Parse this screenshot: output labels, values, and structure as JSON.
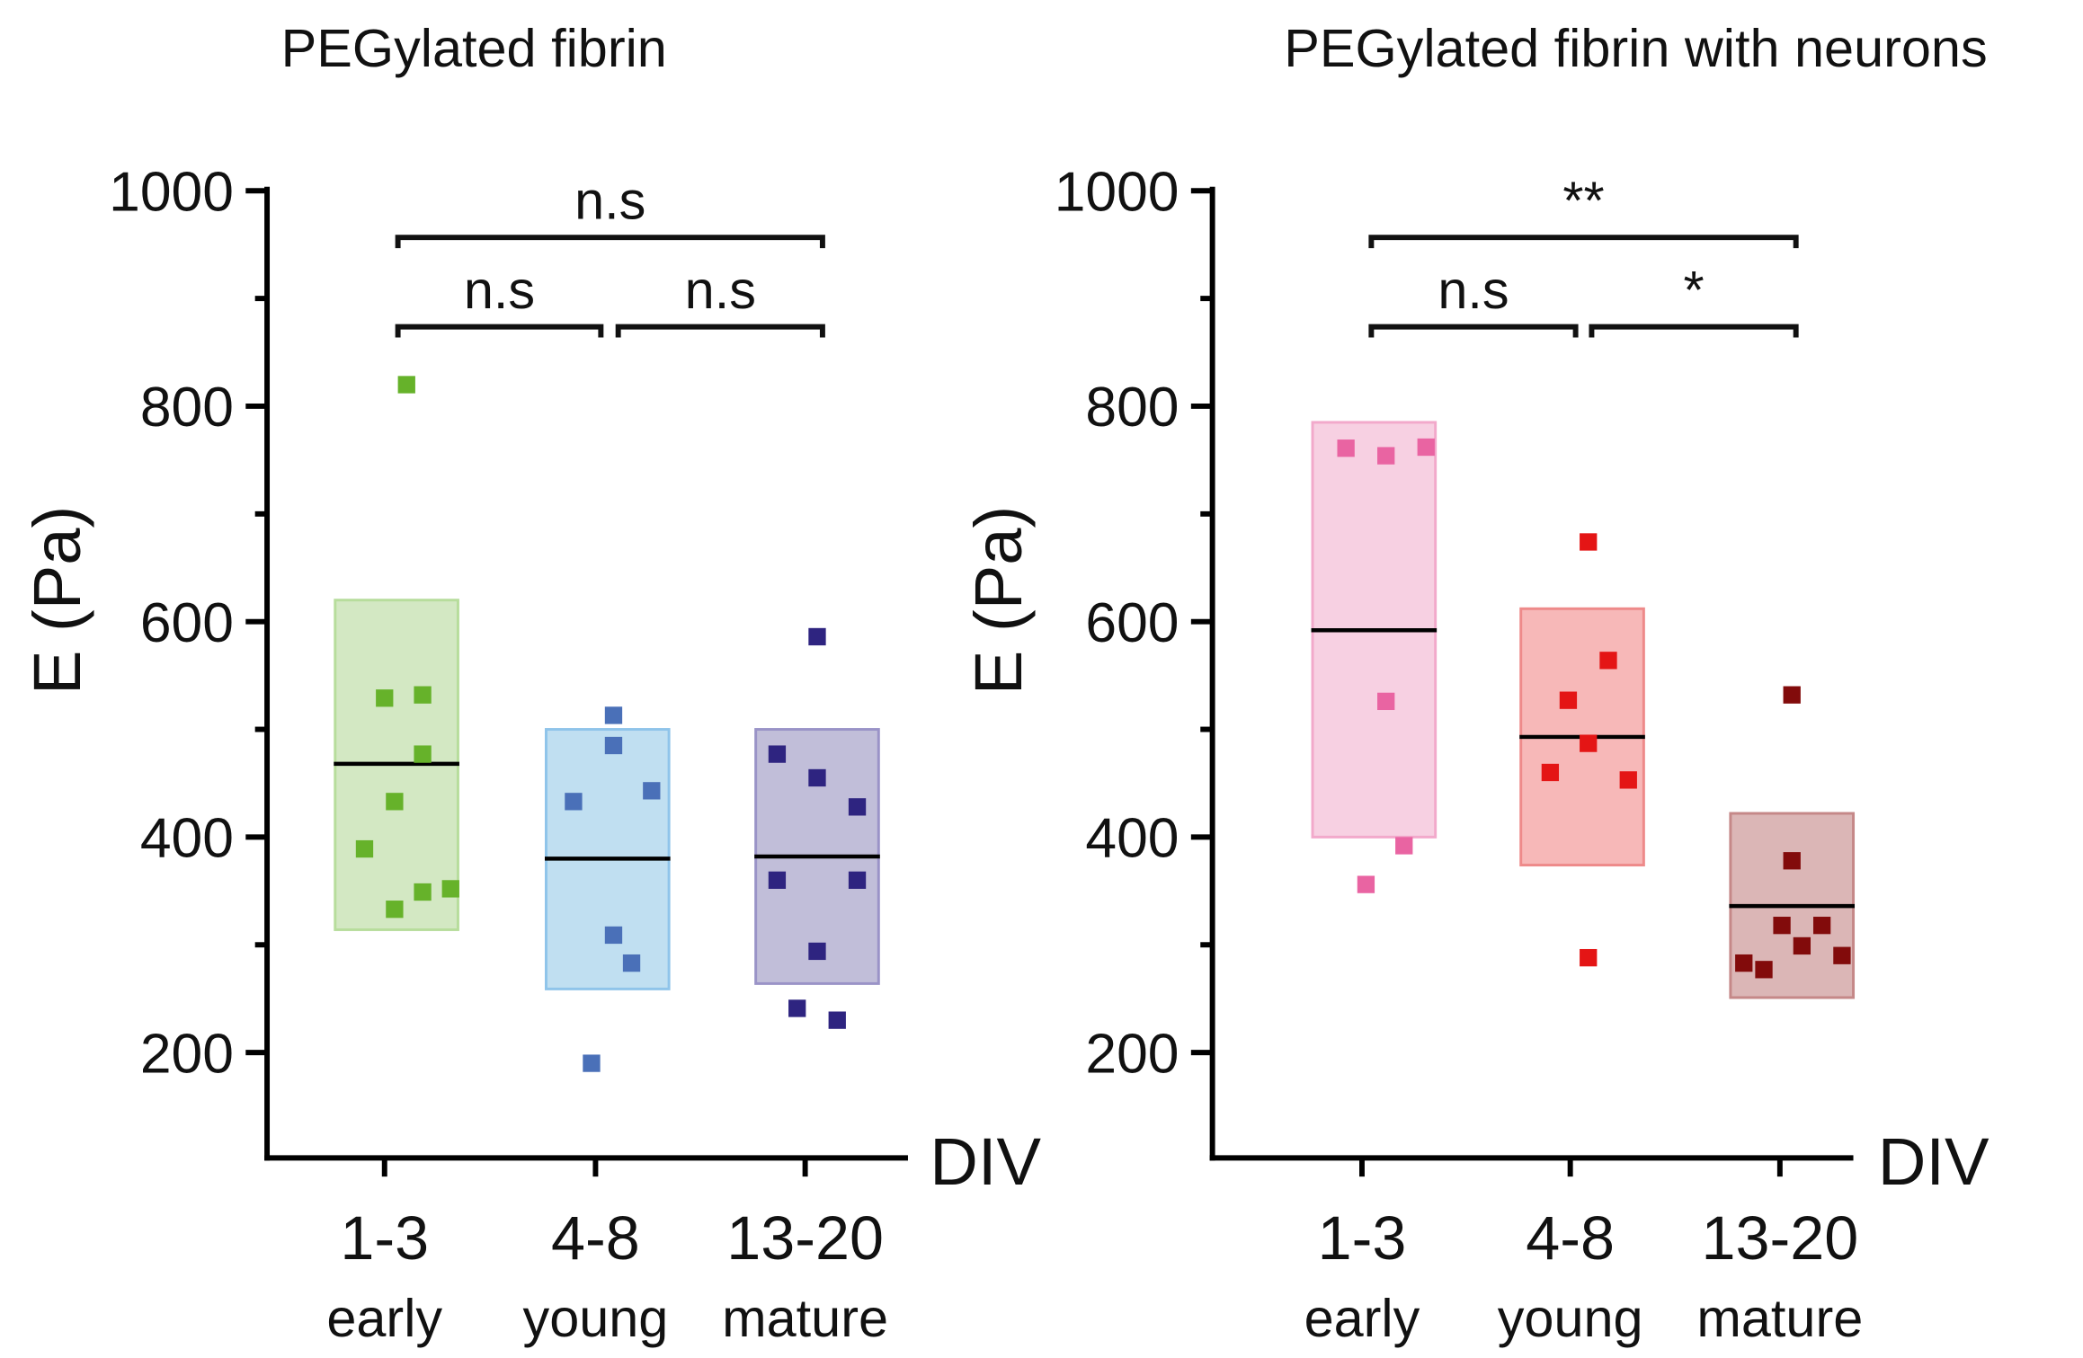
{
  "chart_data": [
    {
      "type": "scatter",
      "title": "PEGylated fibrin",
      "ylabel": "E (Pa)",
      "xlabel": "DIV",
      "ylim": [
        100,
        1000
      ],
      "yticks": [
        200,
        400,
        600,
        800,
        1000
      ],
      "categories": [
        {
          "label": "1-3",
          "sublabel": "early"
        },
        {
          "label": "4-8",
          "sublabel": "young"
        },
        {
          "label": "13-20",
          "sublabel": "mature"
        }
      ],
      "series": [
        {
          "name": "early",
          "color": "#66b22a",
          "fill": "#d3e8c3",
          "stroke": "#b7dd9c",
          "points": [
            [
              0.05,
              820
            ],
            [
              -0.06,
              529
            ],
            [
              0.13,
              532
            ],
            [
              0.13,
              477
            ],
            [
              -0.01,
              433
            ],
            [
              -0.16,
              389
            ],
            [
              -0.01,
              333
            ],
            [
              0.13,
              349
            ],
            [
              0.27,
              352
            ]
          ],
          "box": [
            314,
            620
          ],
          "mean": 468
        },
        {
          "name": "young",
          "color": "#4a70b8",
          "fill": "#c0dff1",
          "stroke": "#8fc4ea",
          "points": [
            [
              0.03,
              513
            ],
            [
              0.03,
              485
            ],
            [
              -0.17,
              433
            ],
            [
              0.22,
              443
            ],
            [
              0.03,
              309
            ],
            [
              0.12,
              283
            ],
            [
              -0.08,
              190
            ]
          ],
          "box": [
            259,
            500
          ],
          "mean": 380
        },
        {
          "name": "mature",
          "color": "#2e2480",
          "fill": "#c1bed9",
          "stroke": "#9a93c7",
          "points": [
            [
              0,
              586
            ],
            [
              -0.2,
              477
            ],
            [
              0,
              455
            ],
            [
              0.2,
              428
            ],
            [
              -0.2,
              360
            ],
            [
              0.2,
              360
            ],
            [
              0,
              294
            ],
            [
              -0.1,
              241
            ],
            [
              0.1,
              230
            ]
          ],
          "box": [
            264,
            500
          ],
          "mean": 382
        }
      ],
      "significance": [
        {
          "from": 0,
          "to": 2,
          "label": "n.s",
          "level": 2
        },
        {
          "from": 0,
          "to": 1,
          "label": "n.s",
          "level": 1
        },
        {
          "from": 1,
          "to": 2,
          "label": "n.s",
          "level": 1
        }
      ]
    },
    {
      "type": "scatter",
      "title": "PEGylated fibrin with neurons",
      "ylabel": "E (Pa)",
      "xlabel": "DIV",
      "ylim": [
        100,
        1000
      ],
      "yticks": [
        200,
        400,
        600,
        800,
        1000
      ],
      "categories": [
        {
          "label": "1-3",
          "sublabel": "early"
        },
        {
          "label": "4-8",
          "sublabel": "young"
        },
        {
          "label": "13-20",
          "sublabel": "mature"
        }
      ],
      "series": [
        {
          "name": "early",
          "color": "#e964a2",
          "fill": "#f7d0e2",
          "stroke": "#f2a9cb",
          "points": [
            [
              -0.14,
              761
            ],
            [
              0.06,
              754
            ],
            [
              0.26,
              762
            ],
            [
              0.06,
              526
            ],
            [
              0.15,
              392
            ],
            [
              -0.04,
              356
            ]
          ],
          "box": [
            400,
            785
          ],
          "mean": 592
        },
        {
          "name": "young",
          "color": "#e41515",
          "fill": "#f7b8b8",
          "stroke": "#ee8a8a",
          "points": [
            [
              0.03,
              674
            ],
            [
              0.13,
              564
            ],
            [
              -0.07,
              527
            ],
            [
              0.03,
              487
            ],
            [
              -0.16,
              460
            ],
            [
              0.23,
              453
            ],
            [
              0.03,
              288
            ]
          ],
          "box": [
            374,
            612
          ],
          "mean": 493
        },
        {
          "name": "mature",
          "color": "#820b0b",
          "fill": "#dbb6b6",
          "stroke": "#c58888",
          "points": [
            [
              0,
              532
            ],
            [
              0,
              378
            ],
            [
              -0.05,
              318
            ],
            [
              0.15,
              318
            ],
            [
              0.05,
              299
            ],
            [
              -0.24,
              283
            ],
            [
              -0.14,
              277
            ],
            [
              0.25,
              290
            ]
          ],
          "box": [
            251,
            422
          ],
          "mean": 336
        }
      ],
      "significance": [
        {
          "from": 0,
          "to": 2,
          "label": "**",
          "level": 2
        },
        {
          "from": 0,
          "to": 1,
          "label": "n.s",
          "level": 1
        },
        {
          "from": 1,
          "to": 2,
          "label": "*",
          "level": 1
        }
      ]
    }
  ]
}
